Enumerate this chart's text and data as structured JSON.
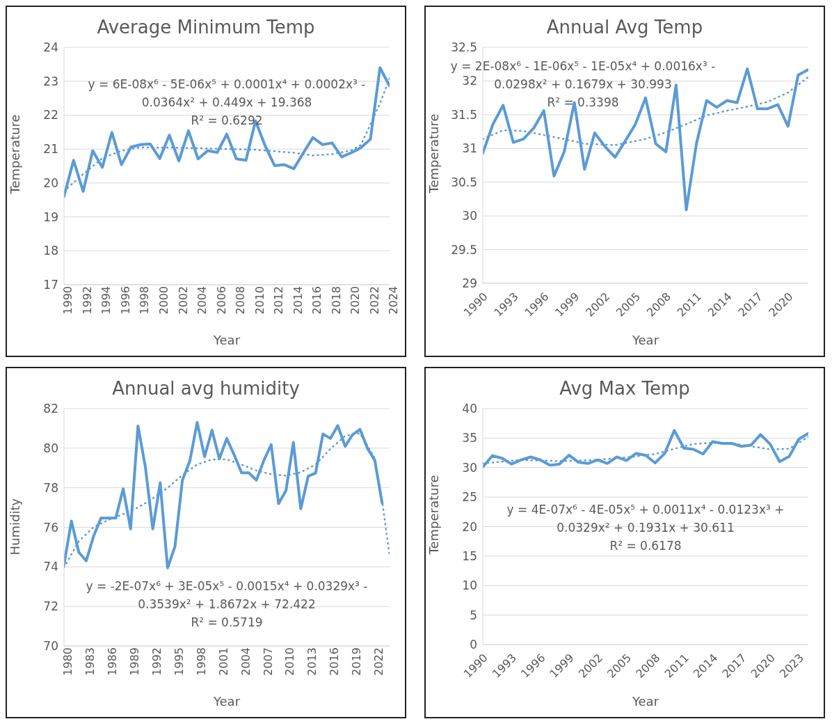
{
  "chart_data": [
    {
      "type": "line",
      "title": "Average Minimum Temp",
      "xlabel": "Year",
      "ylabel": "Temperature",
      "grid": "y",
      "x": [
        1990,
        1991,
        1992,
        1993,
        1994,
        1995,
        1996,
        1997,
        1998,
        1999,
        2000,
        2001,
        2002,
        2003,
        2004,
        2005,
        2006,
        2007,
        2008,
        2009,
        2010,
        2011,
        2012,
        2013,
        2014,
        2015,
        2016,
        2017,
        2018,
        2019,
        2020,
        2021,
        2022,
        2023,
        2024
      ],
      "xlim": [
        1990,
        2024
      ],
      "xticks": [
        1990,
        1992,
        1994,
        1996,
        1998,
        2000,
        2002,
        2004,
        2006,
        2008,
        2010,
        2012,
        2014,
        2016,
        2018,
        2020,
        2022,
        2024
      ],
      "ylim": [
        17,
        24
      ],
      "yticks": [
        17,
        18,
        19,
        20,
        21,
        22,
        23,
        24
      ],
      "series": [
        {
          "color": "#5b9bd5",
          "line_style": "solid",
          "values": [
            19.6,
            20.67,
            19.75,
            20.95,
            20.46,
            21.49,
            20.54,
            21.06,
            21.13,
            21.15,
            20.72,
            21.41,
            20.65,
            21.54,
            20.71,
            20.95,
            20.9,
            21.44,
            20.71,
            20.67,
            21.83,
            21.1,
            20.51,
            20.54,
            20.42,
            20.89,
            21.34,
            21.13,
            21.18,
            20.77,
            20.89,
            21.04,
            21.29,
            23.4,
            22.86
          ]
        },
        {
          "type": "line",
          "color": "#5b9bd5",
          "line_style": "dotted",
          "x": [
            1990,
            1992,
            1994,
            1996,
            1998,
            2002,
            2006,
            2010,
            2014,
            2016,
            2018,
            2020,
            2021,
            2022,
            2023,
            2024
          ],
          "values": [
            19.76,
            20.26,
            20.73,
            20.95,
            21.05,
            21.04,
            21.01,
            20.98,
            20.89,
            20.81,
            20.85,
            20.96,
            21.12,
            21.73,
            22.35,
            23.09
          ]
        }
      ],
      "annotations": [
        "y = 6E-08x⁶ - 5E-06x⁵ + 0.0001x⁴ + 0.0002x³ - 0.0364x² + 0.449x + 19.368",
        "R² = 0.6292"
      ]
    },
    {
      "type": "line",
      "title": "Annual Avg Temp",
      "xlabel": "Year",
      "ylabel": "Temperature",
      "grid": "y",
      "x": [
        1990,
        1991,
        1992,
        1993,
        1994,
        1995,
        1996,
        1997,
        1998,
        1999,
        2000,
        2001,
        2002,
        2003,
        2004,
        2005,
        2006,
        2007,
        2008,
        2009,
        2010,
        2011,
        2012,
        2013,
        2014,
        2015,
        2016,
        2017,
        2018,
        2019,
        2020,
        2021,
        2022
      ],
      "xlim": [
        1990,
        2022
      ],
      "xticks": [
        1990,
        1993,
        1996,
        1999,
        2002,
        2005,
        2008,
        2011,
        2014,
        2017,
        2020
      ],
      "ylim": [
        29,
        32.5
      ],
      "yticks": [
        29,
        29.5,
        30,
        30.5,
        31,
        31.5,
        32,
        32.5
      ],
      "series": [
        {
          "color": "#5b9bd5",
          "line_style": "solid",
          "values": [
            30.93,
            31.36,
            31.64,
            31.09,
            31.14,
            31.3,
            31.56,
            30.59,
            30.95,
            31.68,
            30.69,
            31.23,
            31.03,
            30.87,
            31.11,
            31.36,
            31.75,
            31.07,
            30.95,
            31.94,
            30.09,
            31.07,
            31.71,
            31.61,
            31.71,
            31.68,
            32.18,
            31.59,
            31.59,
            31.65,
            31.33,
            32.09,
            32.17
          ]
        },
        {
          "type": "line",
          "color": "#5b9bd5",
          "line_style": "dotted",
          "x": [
            1990,
            1992,
            1994,
            1996,
            1998,
            2000,
            2003,
            2006,
            2008,
            2010,
            2012,
            2014,
            2016,
            2018,
            2020,
            2022
          ],
          "values": [
            31.14,
            31.27,
            31.26,
            31.2,
            31.14,
            31.07,
            31.05,
            31.14,
            31.24,
            31.36,
            31.49,
            31.56,
            31.62,
            31.69,
            31.83,
            32.06
          ]
        }
      ],
      "annotations": [
        "y = 2E-08x⁶ - 1E-06x⁵ - 1E-05x⁴ + 0.0016x³ - 0.0298x² + 0.1679x + 30.993",
        "R² = 0.3398"
      ]
    },
    {
      "type": "line",
      "title": "Annual avg humidity",
      "xlabel": "Year",
      "ylabel": "Humidity",
      "grid": "y",
      "x": [
        1980,
        1981,
        1982,
        1983,
        1984,
        1985,
        1986,
        1987,
        1988,
        1989,
        1990,
        1991,
        1992,
        1993,
        1994,
        1995,
        1996,
        1997,
        1998,
        1999,
        2000,
        2001,
        2002,
        2003,
        2004,
        2005,
        2006,
        2007,
        2008,
        2009,
        2010,
        2011,
        2012,
        2013,
        2014,
        2015,
        2016,
        2017,
        2018,
        2019,
        2020,
        2021,
        2022,
        2023
      ],
      "xlim": [
        1980,
        2024
      ],
      "xticks": [
        1980,
        1983,
        1986,
        1989,
        1992,
        1995,
        1998,
        2001,
        2004,
        2007,
        2010,
        2013,
        2016,
        2019,
        2022
      ],
      "ylim": [
        70,
        82
      ],
      "yticks": [
        70,
        72,
        74,
        76,
        78,
        80,
        82
      ],
      "series": [
        {
          "color": "#5b9bd5",
          "line_style": "solid",
          "values": [
            74.1,
            76.32,
            74.74,
            74.3,
            75.55,
            76.47,
            76.47,
            76.47,
            77.95,
            75.92,
            81.12,
            79.04,
            75.92,
            78.25,
            73.95,
            75.03,
            78.38,
            79.34,
            81.3,
            79.57,
            80.91,
            79.46,
            80.49,
            79.66,
            78.75,
            78.75,
            78.38,
            79.37,
            80.18,
            77.2,
            77.86,
            80.29,
            76.93,
            78.58,
            78.74,
            80.72,
            80.49,
            81.14,
            80.09,
            80.68,
            80.95,
            80.0,
            79.39,
            77.22
          ]
        },
        {
          "type": "line",
          "color": "#5b9bd5",
          "line_style": "dotted",
          "x": [
            1980,
            1982,
            1984,
            1986,
            1988,
            1990,
            1992,
            1994,
            1996,
            1998,
            2000,
            2002,
            2004,
            2006,
            2008,
            2010,
            2012,
            2014,
            2016,
            2018,
            2020,
            2022,
            2023,
            2024
          ],
          "values": [
            73.97,
            75.29,
            76.01,
            76.37,
            76.67,
            77.0,
            77.46,
            77.99,
            78.64,
            79.17,
            79.43,
            79.43,
            79.17,
            78.87,
            78.68,
            78.61,
            78.78,
            79.17,
            79.96,
            80.62,
            80.75,
            79.5,
            77.33,
            74.57
          ]
        }
      ],
      "annotations": [
        "y = -2E-07x⁶ + 3E-05x⁵ - 0.0015x⁴ + 0.0329x³ - 0.3539x² + 1.8672x + 72.422",
        "R² = 0.5719"
      ]
    },
    {
      "type": "line",
      "title": "Avg Max Temp",
      "xlabel": "Year",
      "ylabel": "Temperature",
      "grid": "y",
      "x": [
        1990,
        1991,
        1992,
        1993,
        1994,
        1995,
        1996,
        1997,
        1998,
        1999,
        2000,
        2001,
        2002,
        2003,
        2004,
        2005,
        2006,
        2007,
        2008,
        2009,
        2010,
        2011,
        2012,
        2013,
        2014,
        2015,
        2016,
        2017,
        2018,
        2019,
        2020,
        2021,
        2022,
        2023,
        2024
      ],
      "xlim": [
        1990,
        2024
      ],
      "xticks": [
        1990,
        1993,
        1996,
        1999,
        2002,
        2005,
        2008,
        2011,
        2014,
        2017,
        2020,
        2023
      ],
      "ylim": [
        0,
        40
      ],
      "yticks": [
        0,
        5,
        10,
        15,
        20,
        25,
        30,
        35,
        40
      ],
      "series": [
        {
          "color": "#5b9bd5",
          "line_style": "solid",
          "values": [
            30.1,
            32.0,
            31.6,
            30.6,
            31.3,
            31.8,
            31.3,
            30.4,
            30.6,
            32.1,
            30.9,
            30.7,
            31.3,
            30.7,
            31.8,
            31.2,
            32.4,
            32.1,
            30.8,
            32.4,
            36.3,
            33.3,
            33.1,
            32.3,
            34.4,
            34.1,
            34.1,
            33.6,
            33.8,
            35.6,
            34.0,
            31.0,
            31.9,
            34.8,
            35.8
          ]
        },
        {
          "type": "line",
          "color": "#5b9bd5",
          "line_style": "dotted",
          "x": [
            1990,
            1994,
            1998,
            2002,
            2006,
            2008,
            2010,
            2012,
            2014,
            2016,
            2018,
            2020,
            2022,
            2024
          ],
          "values": [
            30.7,
            31.3,
            31.1,
            31.3,
            31.9,
            32.3,
            33.2,
            34.0,
            34.2,
            34.1,
            33.6,
            33.1,
            33.2,
            35.2
          ]
        }
      ],
      "annotations": [
        "y = 4E-07x⁶ - 4E-05x⁵ + 0.0011x⁴ - 0.0123x³ + 0.0329x² + 0.1931x + 30.611",
        "R² = 0.6178"
      ]
    }
  ]
}
